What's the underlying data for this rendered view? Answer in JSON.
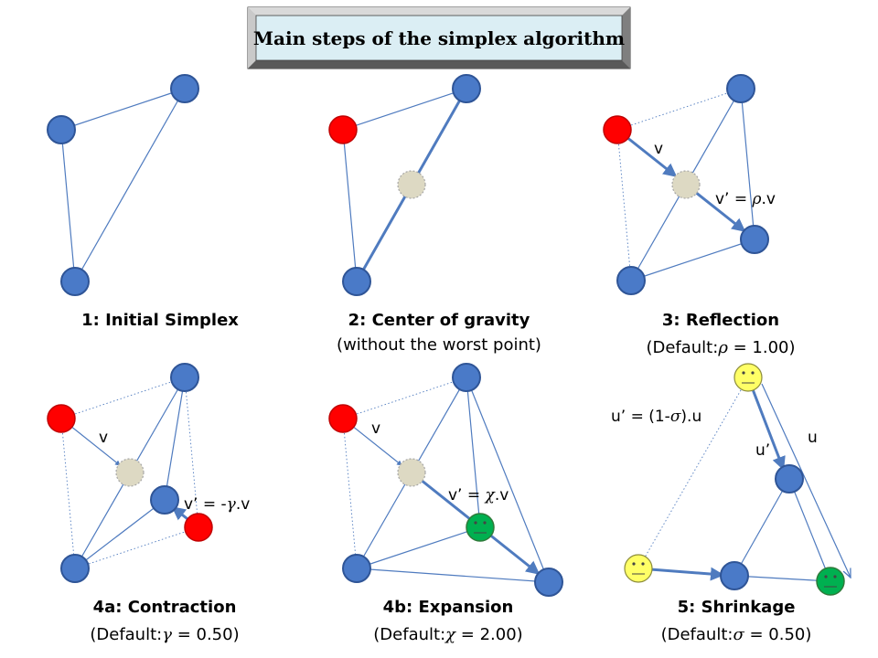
{
  "title": "Main steps of the simplex algorithm",
  "panels": {
    "p1": {
      "caption": "1:  Initial Simplex"
    },
    "p2": {
      "caption": "2: Center of gravity",
      "subcaption": "(without the worst point)"
    },
    "p3": {
      "caption": "3: Reflection",
      "sub_prefix": "(Default:",
      "sub_symbol": "ρ",
      "sub_value": " = 1.00)",
      "label_v": "v",
      "label_vp_prefix": "v’ = ",
      "label_vp_symbol": "ρ",
      "label_vp_suffix": ".v"
    },
    "p4a": {
      "caption": "4a: Contraction",
      "sub_prefix": "(Default:",
      "sub_symbol": "γ",
      "sub_value": " = 0.50)",
      "label_v": "v",
      "label_vp_prefix": "v’ = -",
      "label_vp_symbol": "γ",
      "label_vp_suffix": ".v"
    },
    "p4b": {
      "caption": "4b: Expansion",
      "sub_prefix": "(Default:",
      "sub_symbol": "χ",
      "sub_value": " = 2.00)",
      "label_v": "v",
      "label_vp_prefix": "v’ = ",
      "label_vp_symbol": "χ",
      "label_vp_suffix": ".v"
    },
    "p5": {
      "caption": "5: Shrinkage",
      "sub_prefix": "(Default:",
      "sub_symbol": "σ",
      "sub_value": " = 0.50)",
      "label_formula_prefix": "u’ = (1-",
      "label_formula_symbol": "σ",
      "label_formula_suffix": ").u",
      "label_up": "u’",
      "label_u": "u"
    }
  },
  "colors": {
    "node_blue": "#4a7ac8",
    "node_red": "#ff0000",
    "node_green": "#00b050",
    "node_yellow": "#ffff66",
    "node_centroid": "#ddd9c3",
    "edge": "#4f7bbf"
  }
}
